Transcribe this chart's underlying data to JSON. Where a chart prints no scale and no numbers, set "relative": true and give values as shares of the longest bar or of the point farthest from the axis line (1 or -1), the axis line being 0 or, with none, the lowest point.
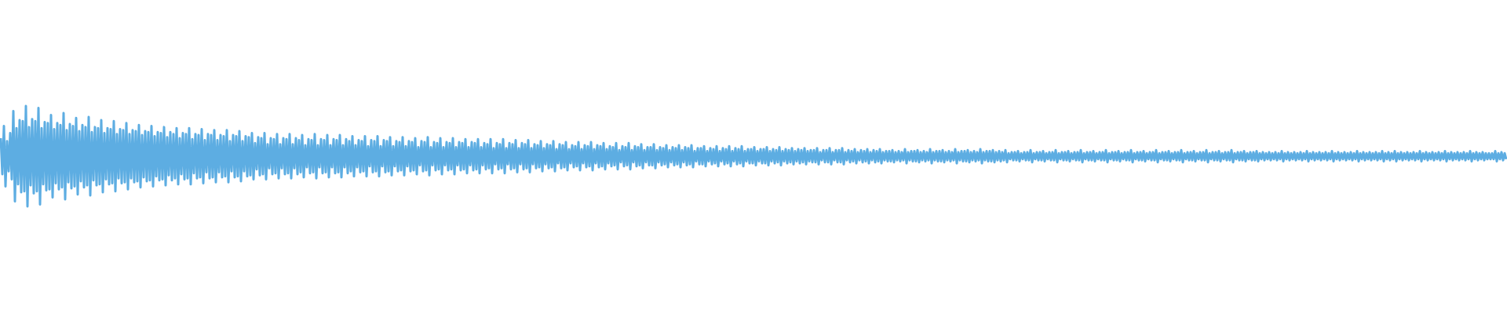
{
  "chart_data": {
    "type": "line",
    "relative": true,
    "color": "#5dade2",
    "categories": [
      null,
      null,
      null,
      null,
      null,
      null,
      null,
      null,
      null,
      null,
      null,
      null,
      null,
      null,
      null,
      null,
      null,
      null,
      null,
      null,
      null,
      null,
      null,
      null,
      null,
      null,
      null,
      null,
      null,
      null,
      null,
      null,
      null,
      null,
      null,
      null,
      null,
      null,
      null,
      null,
      null,
      null,
      null,
      null,
      null,
      null,
      null,
      null,
      null,
      null,
      null,
      null,
      null,
      null,
      null,
      null,
      null,
      null,
      null,
      null,
      null,
      null,
      null,
      null,
      null,
      null,
      null,
      null,
      null,
      null,
      null,
      null,
      null,
      null,
      null,
      null,
      null,
      null,
      null,
      null,
      null,
      null,
      null,
      null,
      null,
      null,
      null,
      null,
      null,
      null,
      null,
      null,
      null,
      null,
      null,
      null,
      null,
      null,
      null,
      null,
      null,
      null,
      null,
      null,
      null,
      null,
      null,
      null,
      null,
      null,
      null,
      null,
      null,
      null,
      null,
      null,
      null,
      null,
      null,
      null,
      null,
      null,
      null,
      null,
      null,
      null,
      null,
      null,
      null,
      null,
      null,
      null,
      null,
      null,
      null,
      null,
      null,
      null,
      null,
      null,
      null,
      null,
      null,
      null,
      null,
      null,
      null,
      null,
      null,
      null,
      null,
      null,
      null,
      null,
      null,
      null,
      null,
      null,
      null,
      null,
      null,
      null,
      null,
      null,
      null,
      null,
      null,
      null,
      null,
      null,
      null,
      null,
      null,
      null,
      null,
      null,
      null,
      null,
      null,
      null,
      null,
      null,
      null,
      null,
      null,
      null,
      null,
      null,
      null,
      null,
      null,
      null,
      null,
      null,
      null,
      null,
      null,
      null,
      null,
      null,
      null,
      null,
      null,
      null,
      null,
      null,
      null,
      null,
      null,
      null,
      null,
      null,
      null,
      null,
      null,
      null,
      null,
      null,
      null,
      null,
      null,
      null,
      null,
      null,
      null,
      null,
      null,
      null,
      null,
      null,
      null,
      null,
      null,
      null,
      null,
      null,
      null,
      null,
      null,
      null,
      null,
      null,
      null,
      null,
      null,
      null,
      null,
      null,
      null,
      null,
      null,
      null,
      null,
      null,
      null,
      null,
      null,
      null,
      null,
      null,
      null,
      null,
      null,
      null,
      null,
      null,
      null,
      null,
      null,
      null,
      null,
      null,
      null,
      null,
      null,
      null,
      null,
      null,
      null,
      null,
      null,
      null,
      null,
      null,
      null,
      null,
      null,
      null,
      null,
      null,
      null,
      null,
      null,
      null,
      null,
      null,
      null,
      null,
      null,
      null,
      null,
      null,
      null,
      null,
      null,
      null,
      null,
      null,
      null,
      null,
      null,
      null,
      null,
      null,
      null,
      null,
      null,
      null,
      null,
      null,
      null,
      null,
      null,
      null,
      null,
      null,
      null,
      null,
      null,
      null,
      null,
      null,
      null,
      null,
      null,
      null,
      null,
      null,
      null,
      null,
      null,
      null,
      null,
      null,
      null,
      null,
      null,
      null,
      null,
      null,
      null,
      null,
      null,
      null,
      null,
      null,
      null,
      null,
      null,
      null,
      null,
      null,
      null,
      null,
      null,
      null,
      null,
      null,
      null,
      null,
      null,
      null,
      null,
      null,
      null,
      null,
      null,
      null,
      null,
      null,
      null,
      null,
      null,
      null,
      null,
      null,
      null,
      null,
      null,
      null,
      null,
      null,
      null,
      null,
      null,
      null,
      null,
      null,
      null,
      null,
      null,
      null,
      null,
      null,
      null,
      null,
      null,
      null,
      null,
      null,
      null,
      null,
      null,
      null,
      null,
      null,
      null,
      null,
      null,
      null,
      null,
      null,
      null,
      null,
      null,
      null,
      null,
      null,
      null,
      null,
      null,
      null,
      null,
      null,
      null,
      null,
      null,
      null,
      null,
      null,
      null,
      null,
      null,
      null,
      null,
      null,
      null,
      null,
      null,
      null,
      null,
      null,
      null,
      null,
      null,
      null,
      null,
      null,
      null,
      null,
      null,
      null,
      null,
      null,
      null,
      null,
      null,
      null,
      null,
      null,
      null,
      null,
      null,
      null,
      null,
      null,
      null,
      null,
      null,
      null,
      null,
      null,
      null,
      null,
      null,
      null,
      null,
      null,
      null,
      null,
      null,
      null,
      null,
      null,
      null,
      null,
      null,
      null,
      null,
      null,
      null,
      null,
      null,
      null,
      null,
      null,
      null,
      null,
      null,
      null,
      null,
      null,
      null,
      null,
      null,
      null,
      null,
      null,
      null,
      null,
      null,
      null,
      null,
      null,
      null,
      null,
      null,
      null,
      null,
      null,
      null,
      null,
      null,
      null,
      null,
      null,
      null,
      null,
      null,
      null,
      null,
      null,
      null,
      null,
      null,
      null,
      null,
      null,
      null,
      null,
      null,
      null,
      null,
      null,
      null,
      null,
      null,
      null,
      null,
      null,
      null,
      null,
      null,
      null,
      null,
      null,
      null,
      null,
      null,
      null,
      null,
      null,
      null,
      null,
      null,
      null,
      null,
      null,
      null,
      null,
      null,
      null,
      null,
      null,
      null,
      null,
      null,
      null,
      null,
      null,
      null,
      null,
      null,
      null,
      null,
      null,
      null,
      null,
      null,
      null,
      null,
      null,
      null,
      null,
      null,
      null,
      null,
      null,
      null,
      null,
      null,
      null,
      null,
      null,
      null,
      null,
      null,
      null,
      null,
      null,
      null,
      null,
      null,
      null,
      null,
      null,
      null,
      null,
      null,
      null,
      null,
      null,
      null,
      null,
      null,
      null,
      null,
      null,
      null,
      null,
      null,
      null,
      null,
      null,
      null,
      null,
      null,
      null,
      null,
      null,
      null,
      null,
      null,
      null,
      null,
      null,
      null,
      null,
      null,
      null,
      null,
      null,
      null,
      null,
      null,
      null,
      null,
      null,
      null,
      null,
      null,
      null,
      null,
      null,
      null,
      null,
      null,
      null,
      null,
      null,
      null,
      null,
      null,
      null,
      null,
      null,
      null,
      null,
      null,
      null,
      null,
      null,
      null,
      null,
      null,
      null,
      null,
      null,
      null,
      null,
      null,
      null,
      null,
      null,
      null,
      null,
      null,
      null,
      null,
      null,
      null,
      null,
      null,
      null,
      null,
      null,
      null,
      null,
      null,
      null,
      null,
      null,
      null,
      null,
      null,
      null,
      null,
      null,
      null,
      null,
      null,
      null,
      null,
      null,
      null,
      null,
      null,
      null,
      null,
      null,
      null,
      null,
      null,
      null,
      null,
      null,
      null,
      null,
      null,
      null,
      null,
      null,
      null,
      null,
      null,
      null,
      null,
      null,
      null,
      null,
      null,
      null,
      null,
      null,
      null,
      null,
      null,
      null,
      null,
      null,
      null,
      null,
      null,
      null,
      null,
      null,
      null,
      null,
      null,
      null,
      null,
      null,
      null,
      null,
      null,
      null,
      null,
      null,
      null,
      null,
      null,
      null,
      null,
      null,
      null,
      null,
      null,
      null,
      null,
      null,
      null,
      null,
      null,
      null,
      null,
      null,
      null,
      null,
      null,
      null,
      null,
      null,
      null,
      null,
      null,
      null,
      null,
      null,
      null,
      null,
      null,
      null,
      null,
      null,
      null,
      null,
      null,
      null,
      null,
      null,
      null,
      null,
      null,
      null,
      null,
      null,
      null,
      null,
      null,
      null,
      null,
      null,
      null,
      null,
      null,
      null,
      null,
      null,
      null,
      null,
      null,
      null,
      null,
      null,
      null,
      null,
      null,
      null,
      null,
      null,
      null,
      null,
      null,
      null,
      null,
      null,
      null,
      null,
      null,
      null,
      null,
      null,
      null,
      null,
      null,
      null,
      null,
      null,
      null,
      null,
      null,
      null,
      null,
      null,
      null,
      null,
      null,
      null,
      null,
      null,
      null,
      null,
      null,
      null,
      null,
      null,
      null,
      null,
      null,
      null,
      null,
      null,
      null,
      null,
      null,
      null,
      null,
      null,
      null,
      null,
      null,
      null,
      null,
      null,
      null,
      null,
      null,
      null,
      null,
      null,
      null,
      null,
      null,
      null,
      null,
      null,
      null,
      null,
      null,
      null,
      null,
      null,
      null,
      null,
      null,
      null,
      null,
      null,
      null,
      null,
      null,
      null,
      null,
      null,
      null,
      null,
      null,
      null,
      null,
      null,
      null,
      null,
      null,
      null,
      null,
      null,
      null,
      null,
      null,
      null
    ],
    "values": [
      0.68,
      0.32,
      0.8,
      0.2,
      0.65,
      0.35,
      0.73,
      0.27,
      0.95,
      0.05,
      0.78,
      0.22,
      0.86,
      0.14,
      0.85,
      0.15,
      1,
      0,
      0.79,
      0.21,
      0.87,
      0.13,
      0.85,
      0.15,
      0.98,
      0.02,
      0.78,
      0.22,
      0.84,
      0.16,
      0.83,
      0.17,
      0.91,
      0.09,
      0.77,
      0.23,
      0.83,
      0.17,
      0.81,
      0.19,
      0.93,
      0.07,
      0.76,
      0.24,
      0.82,
      0.18,
      0.8,
      0.2,
      0.88,
      0.12,
      0.75,
      0.25,
      0.81,
      0.19,
      0.79,
      0.21,
      0.89,
      0.11,
      0.74,
      0.26,
      0.79,
      0.21,
      0.78,
      0.22,
      0.86,
      0.14,
      0.73,
      0.27,
      0.78,
      0.22,
      0.77,
      0.23,
      0.85,
      0.15,
      0.72,
      0.28,
      0.77,
      0.23,
      0.76,
      0.24,
      0.83,
      0.17,
      0.72,
      0.28,
      0.76,
      0.24,
      0.75,
      0.25,
      0.81,
      0.19,
      0.71,
      0.29,
      0.75,
      0.25,
      0.74,
      0.26,
      0.8,
      0.2,
      0.7,
      0.3,
      0.74,
      0.26,
      0.73,
      0.27,
      0.79,
      0.21,
      0.69,
      0.31,
      0.74,
      0.26,
      0.72,
      0.28,
      0.78,
      0.22,
      0.68,
      0.32,
      0.73,
      0.27,
      0.72,
      0.28,
      0.78,
      0.22,
      0.67,
      0.33,
      0.72,
      0.28,
      0.71,
      0.29,
      0.77,
      0.23,
      0.66,
      0.34,
      0.72,
      0.28,
      0.71,
      0.29,
      0.76,
      0.24,
      0.66,
      0.34,
      0.71,
      0.29,
      0.7,
      0.3,
      0.76,
      0.24,
      0.65,
      0.35,
      0.71,
      0.29,
      0.7,
      0.3,
      0.75,
      0.25,
      0.65,
      0.35,
      0.7,
      0.3,
      0.69,
      0.31,
      0.73,
      0.27,
      0.63,
      0.37,
      0.69,
      0.31,
      0.68,
      0.32,
      0.73,
      0.27,
      0.62,
      0.38,
      0.68,
      0.32,
      0.67,
      0.33,
      0.72,
      0.28,
      0.62,
      0.38,
      0.68,
      0.32,
      0.67,
      0.33,
      0.72,
      0.28,
      0.62,
      0.38,
      0.68,
      0.32,
      0.66,
      0.34,
      0.71,
      0.29,
      0.61,
      0.39,
      0.67,
      0.33,
      0.66,
      0.34,
      0.72,
      0.28,
      0.61,
      0.39,
      0.67,
      0.33,
      0.66,
      0.34,
      0.71,
      0.29,
      0.61,
      0.39,
      0.67,
      0.33,
      0.66,
      0.34,
      0.71,
      0.29,
      0.61,
      0.39,
      0.67,
      0.33,
      0.65,
      0.35,
      0.7,
      0.3,
      0.61,
      0.39,
      0.66,
      0.34,
      0.65,
      0.35,
      0.7,
      0.3,
      0.6,
      0.4,
      0.66,
      0.34,
      0.65,
      0.35,
      0.7,
      0.3,
      0.6,
      0.4,
      0.66,
      0.34,
      0.65,
      0.35,
      0.69,
      0.31,
      0.6,
      0.4,
      0.65,
      0.35,
      0.64,
      0.36,
      0.69,
      0.31,
      0.6,
      0.4,
      0.65,
      0.35,
      0.64,
      0.36,
      0.68,
      0.32,
      0.59,
      0.41,
      0.65,
      0.35,
      0.64,
      0.36,
      0.69,
      0.31,
      0.59,
      0.41,
      0.64,
      0.36,
      0.63,
      0.37,
      0.68,
      0.32,
      0.59,
      0.41,
      0.64,
      0.36,
      0.63,
      0.37,
      0.68,
      0.32,
      0.59,
      0.41,
      0.64,
      0.36,
      0.63,
      0.37,
      0.67,
      0.33,
      0.59,
      0.41,
      0.64,
      0.36,
      0.63,
      0.37,
      0.67,
      0.33,
      0.59,
      0.41,
      0.63,
      0.37,
      0.62,
      0.38,
      0.67,
      0.33,
      0.58,
      0.42,
      0.63,
      0.37,
      0.62,
      0.38,
      0.67,
      0.33,
      0.58,
      0.42,
      0.63,
      0.37,
      0.62,
      0.38,
      0.66,
      0.34,
      0.58,
      0.42,
      0.63,
      0.37,
      0.62,
      0.38,
      0.66,
      0.34,
      0.58,
      0.42,
      0.62,
      0.38,
      0.61,
      0.39,
      0.65,
      0.35,
      0.58,
      0.42,
      0.62,
      0.38,
      0.61,
      0.39,
      0.65,
      0.35,
      0.57,
      0.43,
      0.62,
      0.38,
      0.61,
      0.39,
      0.64,
      0.36,
      0.57,
      0.43,
      0.61,
      0.39,
      0.6,
      0.4,
      0.64,
      0.36,
      0.57,
      0.43,
      0.61,
      0.39,
      0.6,
      0.4,
      0.64,
      0.36,
      0.57,
      0.43,
      0.61,
      0.39,
      0.6,
      0.4,
      0.63,
      0.37,
      0.57,
      0.43,
      0.6,
      0.4,
      0.59,
      0.41,
      0.63,
      0.37,
      0.56,
      0.44,
      0.6,
      0.4,
      0.59,
      0.41,
      0.63,
      0.37,
      0.56,
      0.44,
      0.6,
      0.4,
      0.59,
      0.41,
      0.62,
      0.38,
      0.56,
      0.44,
      0.59,
      0.41,
      0.59,
      0.41,
      0.62,
      0.38,
      0.56,
      0.44,
      0.59,
      0.41,
      0.58,
      0.42,
      0.61,
      0.39,
      0.56,
      0.44,
      0.59,
      0.41,
      0.58,
      0.42,
      0.61,
      0.39,
      0.56,
      0.44,
      0.59,
      0.41,
      0.58,
      0.42,
      0.61,
      0.39,
      0.55,
      0.45,
      0.58,
      0.42,
      0.58,
      0.42,
      0.6,
      0.4,
      0.55,
      0.45,
      0.58,
      0.42,
      0.57,
      0.43,
      0.6,
      0.4,
      0.55,
      0.45,
      0.58,
      0.42,
      0.57,
      0.43,
      0.6,
      0.4,
      0.55,
      0.45,
      0.58,
      0.42,
      0.57,
      0.43,
      0.6,
      0.4,
      0.55,
      0.45,
      0.57,
      0.43,
      0.57,
      0.43,
      0.59,
      0.41,
      0.55,
      0.45,
      0.57,
      0.43,
      0.57,
      0.43,
      0.59,
      0.41,
      0.55,
      0.45,
      0.57,
      0.43,
      0.56,
      0.44,
      0.59,
      0.41,
      0.55,
      0.45,
      0.57,
      0.43,
      0.56,
      0.44,
      0.58,
      0.42,
      0.55,
      0.45,
      0.57,
      0.43,
      0.56,
      0.44,
      0.58,
      0.42,
      0.55,
      0.45,
      0.56,
      0.44,
      0.56,
      0.44,
      0.58,
      0.42,
      0.54,
      0.46,
      0.56,
      0.44,
      0.56,
      0.44,
      0.58,
      0.42,
      0.54,
      0.46,
      0.56,
      0.44,
      0.56,
      0.44,
      0.58,
      0.42,
      0.54,
      0.46,
      0.56,
      0.44,
      0.55,
      0.45,
      0.57,
      0.43,
      0.54,
      0.46,
      0.56,
      0.44,
      0.55,
      0.45,
      0.57,
      0.43,
      0.54,
      0.46,
      0.56,
      0.44,
      0.55,
      0.45,
      0.57,
      0.43,
      0.54,
      0.46,
      0.55,
      0.45,
      0.55,
      0.45,
      0.56,
      0.44,
      0.54,
      0.46,
      0.55,
      0.45,
      0.54,
      0.46,
      0.57,
      0.43,
      0.54,
      0.46,
      0.55,
      0.45,
      0.55,
      0.45,
      0.56,
      0.44,
      0.54,
      0.46,
      0.55,
      0.45,
      0.54,
      0.46,
      0.57,
      0.43,
      0.54,
      0.46,
      0.55,
      0.45,
      0.55,
      0.45,
      0.56,
      0.44,
      0.54,
      0.46,
      0.55,
      0.45,
      0.54,
      0.46,
      0.57,
      0.43,
      0.54,
      0.46,
      0.55,
      0.45,
      0.55,
      0.45,
      0.56,
      0.44,
      0.54,
      0.46,
      0.55,
      0.45,
      0.54,
      0.46,
      0.57,
      0.43,
      0.54,
      0.46,
      0.55,
      0.45,
      0.55,
      0.45,
      0.56,
      0.44,
      0.54,
      0.46,
      0.55,
      0.45,
      0.54,
      0.46,
      0.56,
      0.44,
      0.53,
      0.47,
      0.54,
      0.46,
      0.54,
      0.46,
      0.55,
      0.45,
      0.53,
      0.47,
      0.54,
      0.46,
      0.54,
      0.46,
      0.56,
      0.44,
      0.53,
      0.47,
      0.54,
      0.46,
      0.54,
      0.46,
      0.55,
      0.45,
      0.53,
      0.47,
      0.54,
      0.46,
      0.54,
      0.46,
      0.56,
      0.44,
      0.53,
      0.47,
      0.54,
      0.46,
      0.54,
      0.46,
      0.55,
      0.45,
      0.53,
      0.47,
      0.54,
      0.46,
      0.54,
      0.46,
      0.56,
      0.44,
      0.53,
      0.47,
      0.54,
      0.46,
      0.54,
      0.46,
      0.55,
      0.45,
      0.53,
      0.47,
      0.54,
      0.46,
      0.54,
      0.46,
      0.56,
      0.44,
      0.53,
      0.47,
      0.54,
      0.46,
      0.54,
      0.46,
      0.55,
      0.45,
      0.53,
      0.47,
      0.54,
      0.46,
      0.54,
      0.46,
      0.56,
      0.44,
      0.53,
      0.47,
      0.54,
      0.46,
      0.54,
      0.46,
      0.55,
      0.45,
      0.53,
      0.47,
      0.54,
      0.46,
      0.54,
      0.46,
      0.56,
      0.44,
      0.53,
      0.47,
      0.54,
      0.46,
      0.54,
      0.46,
      0.55,
      0.45,
      0.53,
      0.47,
      0.54,
      0.46,
      0.54,
      0.46,
      0.56,
      0.44,
      0.53,
      0.47,
      0.54,
      0.46,
      0.54,
      0.46,
      0.55,
      0.45,
      0.53,
      0.47,
      0.54,
      0.46,
      0.54,
      0.46,
      0.56,
      0.44,
      0.53,
      0.47,
      0.54,
      0.46,
      0.54,
      0.46,
      0.55,
      0.45,
      0.53,
      0.47,
      0.54,
      0.46,
      0.54,
      0.46,
      0.56,
      0.44,
      0.53,
      0.47,
      0.54,
      0.46,
      0.54,
      0.46,
      0.55,
      0.45,
      0.53,
      0.47,
      0.54,
      0.46,
      0.54,
      0.46,
      0.55,
      0.45,
      0.53,
      0.47,
      0.54,
      0.46,
      0.53,
      0.47,
      0.54,
      0.46,
      0.53,
      0.47,
      0.54,
      0.46,
      0.53,
      0.47,
      0.55,
      0.45,
      0.53,
      0.47,
      0.54,
      0.46,
      0.53,
      0.47,
      0.54,
      0.46,
      0.53,
      0.47,
      0.54,
      0.46,
      0.53,
      0.47,
      0.55,
      0.45,
      0.53,
      0.47,
      0.54,
      0.46,
      0.53,
      0.47,
      0.54,
      0.46,
      0.53,
      0.47,
      0.54,
      0.46,
      0.53,
      0.47,
      0.55,
      0.45,
      0.53,
      0.47,
      0.54,
      0.46,
      0.53,
      0.47,
      0.54,
      0.46,
      0.53,
      0.47,
      0.54,
      0.46,
      0.53,
      0.47,
      0.55,
      0.45,
      0.53,
      0.47,
      0.54,
      0.46,
      0.53,
      0.47,
      0.54,
      0.46,
      0.53,
      0.47,
      0.54,
      0.46,
      0.53,
      0.47,
      0.55,
      0.45,
      0.53,
      0.47,
      0.54,
      0.46,
      0.53,
      0.47,
      0.55,
      0.45,
      0.53,
      0.47,
      0.54,
      0.46,
      0.53,
      0.47,
      0.54,
      0.46,
      0.53,
      0.47,
      0.54,
      0.46,
      0.53,
      0.47,
      0.55,
      0.45,
      0.53,
      0.47,
      0.54,
      0.46,
      0.53,
      0.47,
      0.54,
      0.46,
      0.53,
      0.47,
      0.54,
      0.46,
      0.53,
      0.47,
      0.55,
      0.45,
      0.53,
      0.47,
      0.54,
      0.46,
      0.53,
      0.47,
      0.54,
      0.46,
      0.53,
      0.47,
      0.54,
      0.46,
      0.53,
      0.47,
      0.55,
      0.45,
      0.53,
      0.47,
      0.54,
      0.46,
      0.53,
      0.47,
      0.54,
      0.46,
      0.53,
      0.47,
      0.53,
      0.47,
      0.53,
      0.47,
      0.55,
      0.45,
      0.53,
      0.47,
      0.54,
      0.46,
      0.53,
      0.47
    ]
  }
}
